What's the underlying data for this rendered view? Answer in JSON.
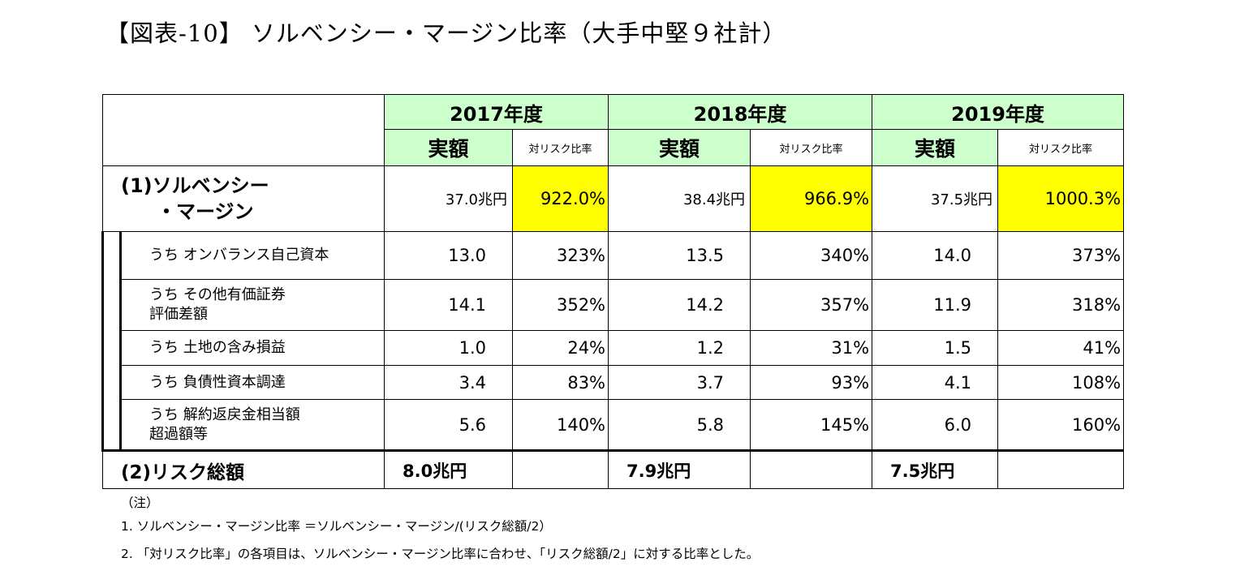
{
  "title": "【図表‐10】 ソルベンシー・マージン比率（大手中堅９社計）",
  "headers": {
    "years": [
      "2017年度",
      "2018年度",
      "2019年度"
    ],
    "amount_label": "実額",
    "ratio_label": "対リスク比率"
  },
  "solvency": {
    "label_line1": "(1)ソルベンシー",
    "label_line2": "・マージン",
    "amounts": [
      "37.0兆円",
      "38.4兆円",
      "37.5兆円"
    ],
    "ratios": [
      "922.0%",
      "966.9%",
      "1000.3%"
    ]
  },
  "rows": [
    {
      "label_line1": "うち オンバランス自己資本",
      "label_line2": "",
      "values": [
        "13.0",
        "323%",
        "13.5",
        "340%",
        "14.0",
        "373%"
      ]
    },
    {
      "label_line1": "うち その他有価証券",
      "label_line2": "評価差額",
      "values": [
        "14.1",
        "352%",
        "14.2",
        "357%",
        "11.9",
        "318%"
      ]
    },
    {
      "label_line1": "うち 土地の含み損益",
      "label_line2": "",
      "values": [
        "1.0",
        "24%",
        "1.2",
        "31%",
        "1.5",
        "41%"
      ]
    },
    {
      "label_line1": "うち 負債性資本調達",
      "label_line2": "",
      "values": [
        "3.4",
        "83%",
        "3.7",
        "93%",
        "4.1",
        "108%"
      ]
    },
    {
      "label_line1": "うち 解約返戻金相当額",
      "label_line2": "超過額等",
      "values": [
        "5.6",
        "140%",
        "5.8",
        "145%",
        "6.0",
        "160%"
      ]
    }
  ],
  "risk": {
    "label": "(2)リスク総額",
    "amounts": [
      "8.0兆円",
      "7.9兆円",
      "7.5兆円"
    ]
  },
  "notes": {
    "heading": "（注）",
    "items": [
      "1. ソルベンシー・マージン比率 ＝ソルベンシー・マージン/(リスク総額/2）",
      "2. 「対リスク比率」の各項目は、ソルベンシー・マージン比率に合わせ、「リスク総額/2」に対する比率とした。"
    ]
  }
}
